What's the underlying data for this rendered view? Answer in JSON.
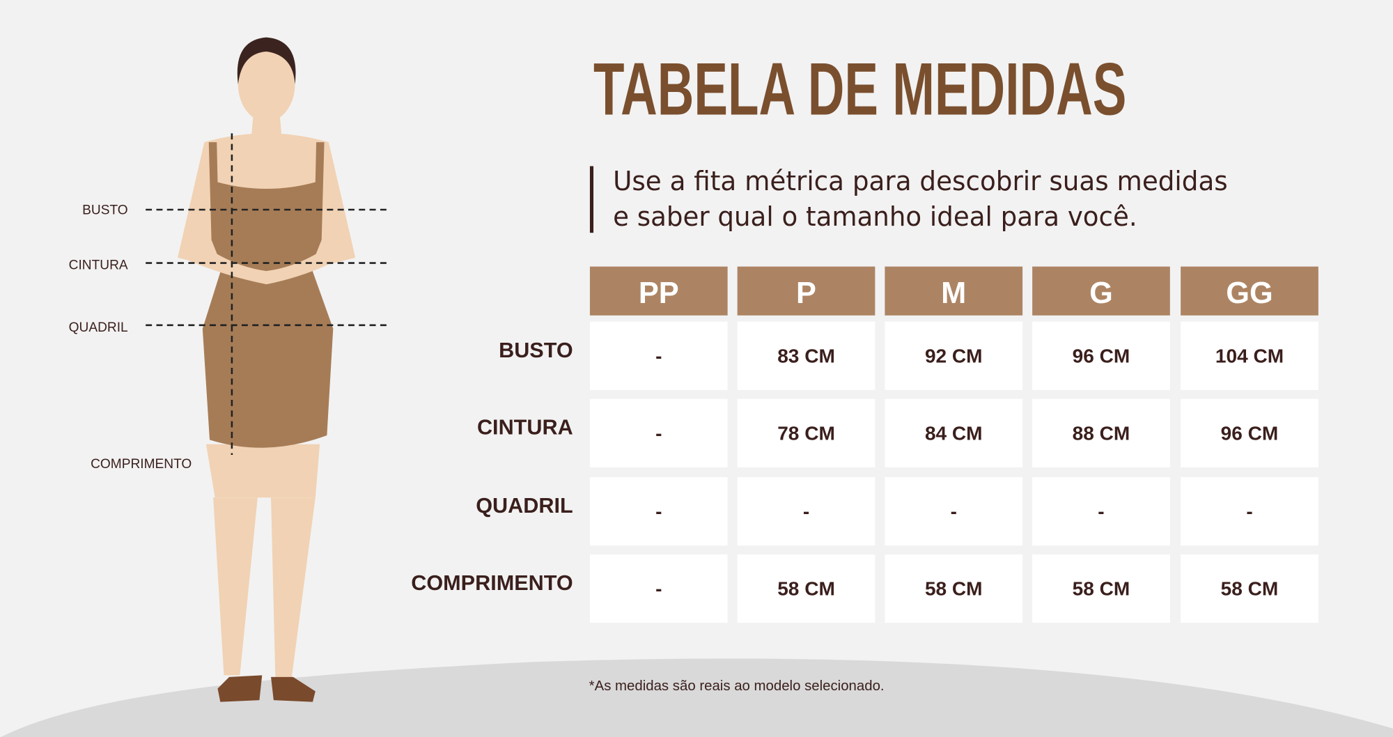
{
  "header": {
    "title": "TABELA DE MEDIDAS",
    "subtitle": [
      "Use a fita métrica para descobrir suas medidas",
      "e saber qual o tamanho ideal para você."
    ]
  },
  "figure": {
    "labels": [
      "BUSTO",
      "CINTURA",
      "QUADRIL",
      "COMPRIMENTO"
    ]
  },
  "table": {
    "headers": [
      "PP",
      "P",
      "M",
      "G",
      "GG"
    ],
    "rows": [
      {
        "label": "BUSTO",
        "values": [
          "-",
          "83 CM",
          "92 CM",
          "96 CM",
          "104 CM"
        ]
      },
      {
        "label": "CINTURA",
        "values": [
          "-",
          "78 CM",
          "84 CM",
          "88 CM",
          "96 CM"
        ]
      },
      {
        "label": "QUADRIL",
        "values": [
          "-",
          "-",
          "-",
          "-",
          "-"
        ]
      },
      {
        "label": "COMPRIMENTO",
        "values": [
          "-",
          "58 CM",
          "58 CM",
          "58 CM",
          "58 CM"
        ]
      }
    ]
  },
  "footnote": "*As medidas são reais ao modelo selecionado."
}
